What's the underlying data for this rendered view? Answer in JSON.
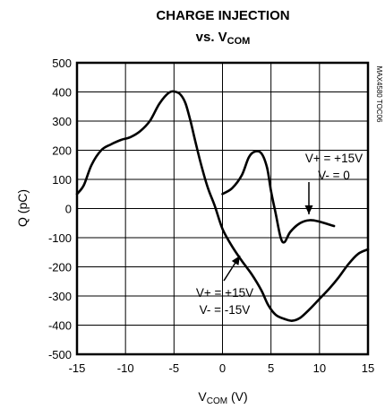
{
  "chart_data": {
    "type": "line",
    "title": "CHARGE INJECTION",
    "subtitle_prefix": "vs. V",
    "subtitle_sub": "COM",
    "xlabel_main": "V",
    "xlabel_sub": "COM",
    "xlabel_unit": " (V)",
    "ylabel": "Q (pC)",
    "xlim": [
      -15,
      15
    ],
    "ylim": [
      -500,
      500
    ],
    "x_ticks": [
      "-15",
      "-10",
      "-5",
      "0",
      "5",
      "10",
      "15"
    ],
    "y_ticks": [
      "500",
      "400",
      "300",
      "200",
      "100",
      "0",
      "-100",
      "-200",
      "-300",
      "-400",
      "-500"
    ],
    "grid": true,
    "side_label": "MAX4580 TOC06",
    "series": [
      {
        "name": "V+ = +15V  V- = -15V",
        "x": [
          -15,
          -14.3,
          -13.5,
          -12.5,
          -11.5,
          -10.5,
          -9.5,
          -8.5,
          -7.5,
          -6.5,
          -5.5,
          -4.8,
          -4.3,
          -3.8,
          -3.3,
          -2.8,
          -2.2,
          -1.5,
          -0.8,
          0,
          1,
          2,
          3,
          4,
          4.7,
          5.5,
          6.5,
          7.2,
          8,
          9,
          10,
          11,
          12,
          13,
          14,
          15
        ],
        "y": [
          50,
          80,
          150,
          200,
          220,
          235,
          245,
          265,
          300,
          360,
          398,
          400,
          390,
          360,
          300,
          230,
          150,
          70,
          10,
          -70,
          -130,
          -180,
          -225,
          -280,
          -330,
          -365,
          -380,
          -385,
          -375,
          -345,
          -310,
          -275,
          -235,
          -190,
          -155,
          -140
        ]
      },
      {
        "name": "V+ = +15V  V- = 0",
        "x": [
          0,
          1,
          2,
          2.7,
          3.3,
          4,
          4.6,
          5,
          5.5,
          6,
          6.4,
          7,
          8,
          9,
          10,
          11,
          11.5
        ],
        "y": [
          50,
          70,
          115,
          175,
          195,
          190,
          140,
          60,
          -20,
          -100,
          -115,
          -80,
          -50,
          -40,
          -45,
          -55,
          -60
        ]
      }
    ],
    "annotations": [
      {
        "lines": [
          "V+ = +15V",
          "V- = 0"
        ]
      },
      {
        "lines": [
          "V+ = +15V",
          "V- = -15V"
        ]
      }
    ]
  }
}
